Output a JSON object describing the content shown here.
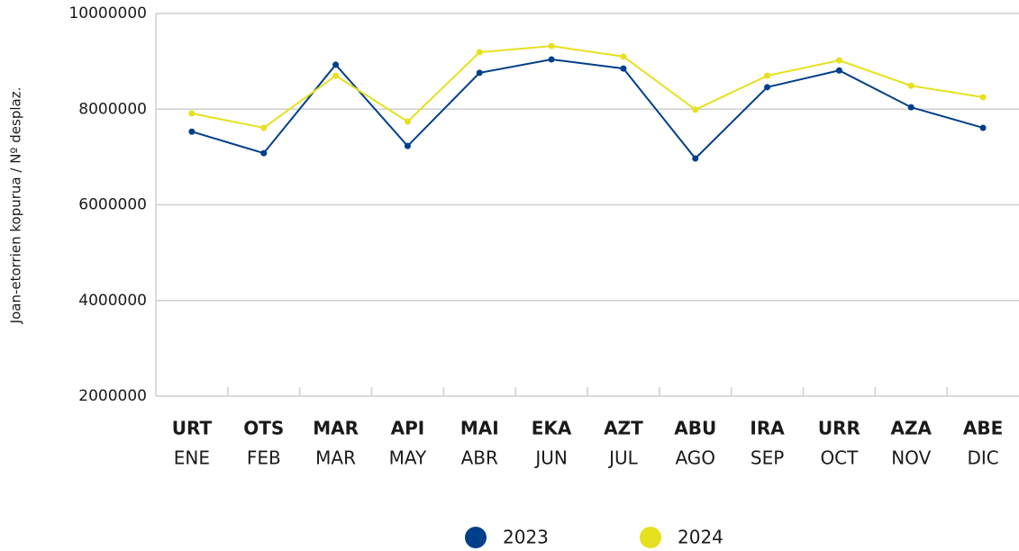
{
  "chart_data": {
    "type": "line",
    "ylabel": "Joan-etorrien kopurua / Nº desplaz.",
    "categories": [
      [
        "URT",
        "ENE"
      ],
      [
        "OTS",
        "FEB"
      ],
      [
        "MAR",
        "MAR"
      ],
      [
        "API",
        "MAY"
      ],
      [
        "MAI",
        "ABR"
      ],
      [
        "EKA",
        "JUN"
      ],
      [
        "AZT",
        "JUL"
      ],
      [
        "ABU",
        "AGO"
      ],
      [
        "IRA",
        "SEP"
      ],
      [
        "URR",
        "OCT"
      ],
      [
        "AZA",
        "NOV"
      ],
      [
        "ABE",
        "DIC"
      ]
    ],
    "series": [
      {
        "name": "2023",
        "color": "#003f8a",
        "values": [
          7530000,
          7080000,
          8930000,
          7230000,
          8760000,
          9040000,
          8850000,
          6970000,
          8460000,
          8810000,
          8040000,
          7610000
        ]
      },
      {
        "name": "2024",
        "color": "#e6e01e",
        "values": [
          7910000,
          7610000,
          8700000,
          7740000,
          9190000,
          9320000,
          9100000,
          7990000,
          8700000,
          9020000,
          8490000,
          8250000
        ]
      }
    ],
    "ylim": [
      2000000,
      10000000
    ],
    "yticks": [
      2000000,
      4000000,
      6000000,
      8000000,
      10000000
    ],
    "grid": true
  }
}
